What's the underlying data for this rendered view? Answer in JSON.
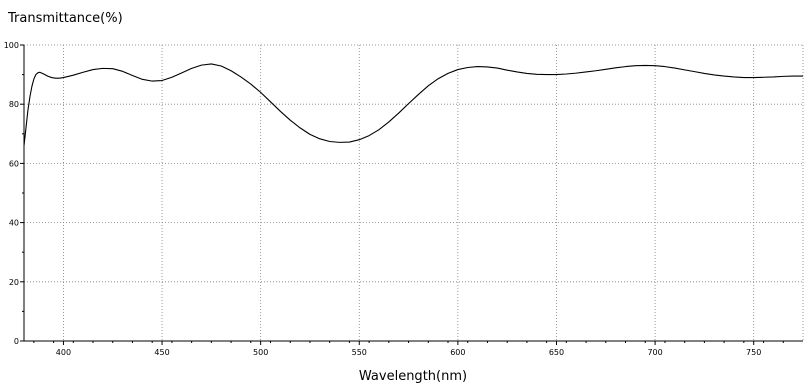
{
  "chart_data": {
    "type": "line",
    "title": "",
    "xlabel": "Wavelength(nm)",
    "ylabel": "Transmittance(%)",
    "xlim": [
      380,
      775
    ],
    "ylim": [
      0,
      100
    ],
    "x_ticks": [
      400,
      450,
      500,
      550,
      600,
      650,
      700,
      750
    ],
    "y_ticks": [
      0,
      20,
      40,
      60,
      80,
      100
    ],
    "grid": true,
    "legend": "none",
    "line_color": "#000000",
    "grid_color": "#808080",
    "series": [
      {
        "x": [
          380,
          381,
          382,
          383,
          384,
          385,
          386,
          387,
          388,
          390,
          392,
          394,
          396,
          398,
          400,
          405,
          410,
          415,
          420,
          425,
          430,
          435,
          440,
          445,
          450,
          455,
          460,
          465,
          470,
          475,
          480,
          485,
          490,
          495,
          500,
          505,
          510,
          515,
          520,
          525,
          530,
          535,
          540,
          545,
          550,
          555,
          560,
          565,
          570,
          575,
          580,
          585,
          590,
          595,
          600,
          605,
          610,
          615,
          620,
          625,
          630,
          635,
          640,
          645,
          650,
          655,
          660,
          665,
          670,
          675,
          680,
          685,
          690,
          695,
          700,
          705,
          710,
          715,
          720,
          725,
          730,
          735,
          740,
          745,
          750,
          755,
          760,
          765,
          770,
          775
        ],
        "y": [
          66,
          72,
          78,
          82.5,
          86,
          88.5,
          90,
          90.6,
          90.8,
          90.2,
          89.5,
          89.0,
          88.8,
          88.8,
          89.0,
          89.8,
          90.8,
          91.7,
          92.1,
          92.0,
          91.1,
          89.7,
          88.4,
          87.8,
          88.0,
          89.1,
          90.6,
          92.1,
          93.2,
          93.6,
          92.9,
          91.3,
          89.2,
          86.8,
          84.0,
          80.8,
          77.6,
          74.6,
          72.0,
          69.8,
          68.3,
          67.4,
          67.1,
          67.2,
          68.0,
          69.4,
          71.4,
          74.0,
          77.0,
          80.2,
          83.3,
          86.2,
          88.6,
          90.4,
          91.7,
          92.4,
          92.7,
          92.6,
          92.2,
          91.5,
          90.9,
          90.4,
          90.1,
          90.0,
          90.0,
          90.2,
          90.5,
          90.9,
          91.3,
          91.8,
          92.3,
          92.7,
          93.0,
          93.1,
          93.0,
          92.7,
          92.2,
          91.6,
          91.0,
          90.4,
          89.9,
          89.5,
          89.2,
          89.0,
          89.0,
          89.1,
          89.2,
          89.4,
          89.5,
          89.5
        ]
      }
    ]
  }
}
